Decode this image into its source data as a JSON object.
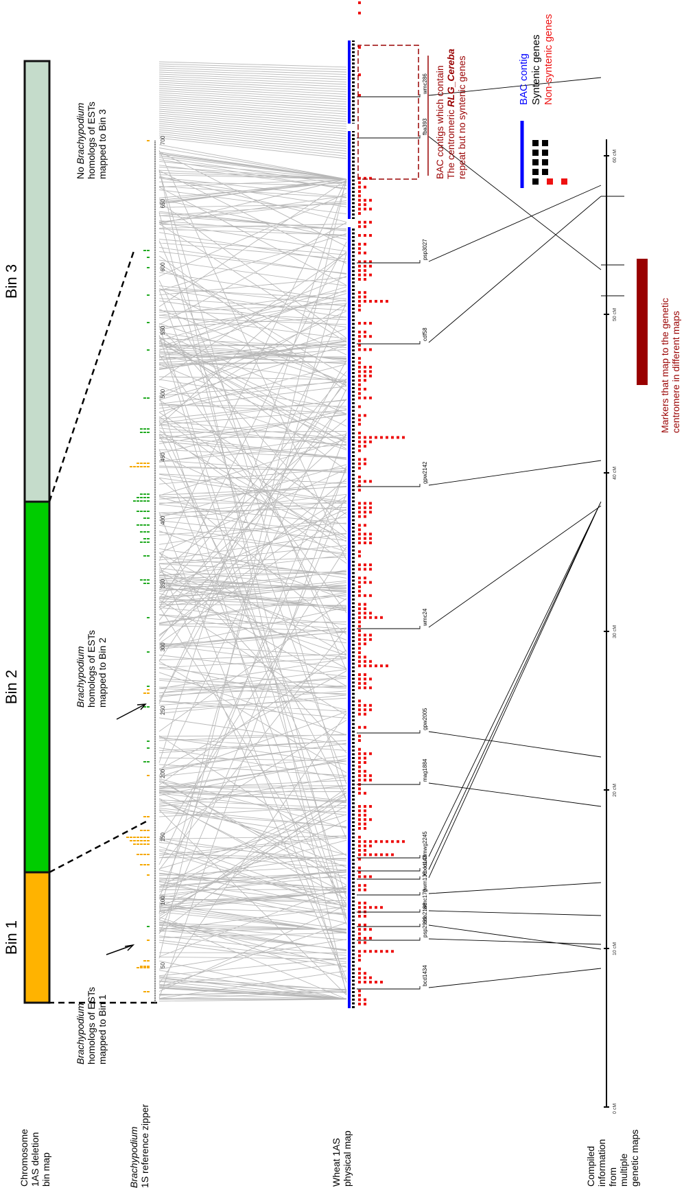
{
  "bins": [
    {
      "label": "Bin 1",
      "color": "#FFB300"
    },
    {
      "label": "Bin 2",
      "color": "#00CC00"
    },
    {
      "label": "Bin 3",
      "color": "#C5DCCB"
    }
  ],
  "track_labels": {
    "deletion_bin_map": "Chromosome 1AS deletion bin map",
    "brachypodium_prefix": "Brachypodium",
    "brachypodium_rest": "1S reference zipper",
    "physical_map": "Wheat 1AS physical map",
    "genetic_maps": "Compiled information from multiple genetic maps"
  },
  "annotations": {
    "bin1_species": "Brachypodium",
    "bin1_rest": "homologs of ESTs mapped to Bin 1",
    "bin2_species": "Brachypodium",
    "bin2_rest": "homologs of ESTs mapped to Bin 2",
    "bin3_line1": "No",
    "bin3_species": "Brachypodium",
    "bin3_rest": "homologs of ESTs mapped to Bin 3",
    "centromere_box_line1": "BAC contigs which contain",
    "centromere_box_line2a": "The centromeric",
    "centromere_box_line2b": "RLG_Cereba",
    "centromere_box_line3": "repeat but no syntenic genes",
    "genetic_centromere": "Markers that map to the genetic centromere in different maps"
  },
  "legend": {
    "bac_contig": "BAC contig",
    "syntenic_genes": "Syntenic genes",
    "non_syntenic_genes": "Non-syntenic genes"
  },
  "colors": {
    "bac_contig": "#0000FF",
    "syntenic": "#000000",
    "non_syntenic": "#EE1111",
    "synteny_lines": "#B8B8B8",
    "centromere": "#990000",
    "bin1_est": "#F5A800",
    "bin2_est": "#22AA22"
  },
  "brachypodium_ticks": [
    "50",
    "100",
    "150",
    "200",
    "250",
    "300",
    "350",
    "400",
    "450",
    "500",
    "550",
    "600",
    "650",
    "700"
  ],
  "genetic_ticks": [
    "0 cM",
    "10 cM",
    "20 cM",
    "30 cM",
    "40 cM",
    "50 cM",
    "60 cM"
  ],
  "markers": [
    "bcd1434",
    "psp2999",
    "cdo2188",
    "wmc179",
    "gwm136",
    "Xbcd148",
    "ksuD",
    "mwg2245",
    "mag1884",
    "gpw2005",
    "wmc24",
    "gpw2142",
    "cdf58",
    "psp3027",
    "fba393",
    "wmc286"
  ]
}
